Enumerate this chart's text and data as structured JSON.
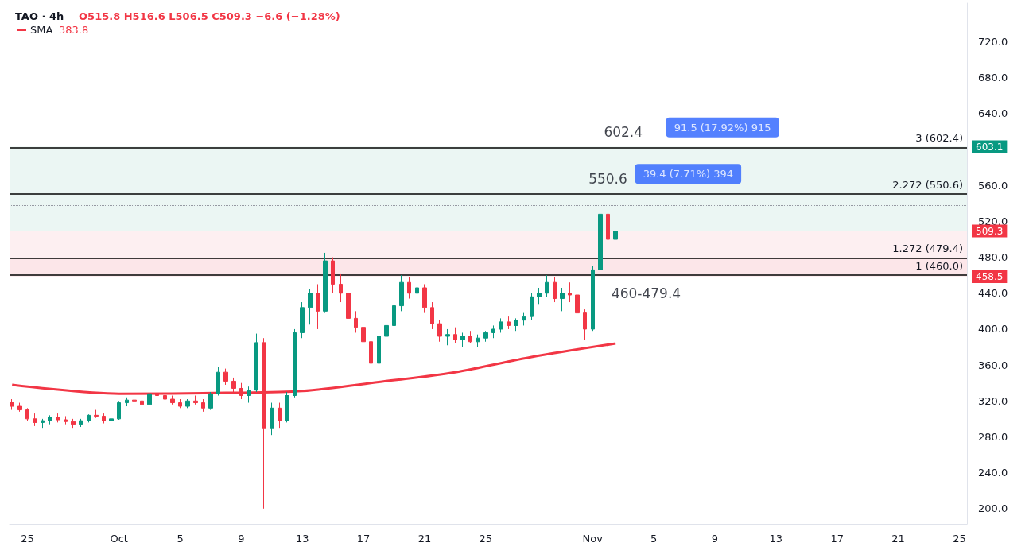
{
  "chart_data": {
    "type": "candlestick",
    "title": "TAO · 4h",
    "x": [
      "--09-24T00:00",
      "--09-24T12:00",
      "--09-25T00:00",
      "--09-25T12:00",
      "--09-26T00:00",
      "--09-26T12:00",
      "--09-27T00:00",
      "--09-27T12:00",
      "--09-28T00:00",
      "--09-28T12:00",
      "--09-29T00:00",
      "--09-29T12:00",
      "--09-30T00:00",
      "--09-30T12:00",
      "--10-01T00:00",
      "--10-01T12:00",
      "--10-02T00:00",
      "--10-02T12:00",
      "--10-03T00:00",
      "--10-03T12:00",
      "--10-04T00:00",
      "--10-04T12:00",
      "--10-05T00:00",
      "--10-05T12:00",
      "--10-06T00:00",
      "--10-06T12:00",
      "--10-07T00:00",
      "--10-07T12:00",
      "--10-08T00:00",
      "--10-08T12:00",
      "--10-09T00:00",
      "--10-09T12:00",
      "--10-10T00:00",
      "--10-10T12:00",
      "--10-11T00:00",
      "--10-11T12:00",
      "--10-12T00:00",
      "--10-12T12:00",
      "--10-13T00:00",
      "--10-13T12:00",
      "--10-14T00:00",
      "--10-14T12:00",
      "--10-15T00:00",
      "--10-15T12:00",
      "--10-16T00:00",
      "--10-16T12:00",
      "--10-17T00:00",
      "--10-17T12:00",
      "--10-18T00:00",
      "--10-18T12:00",
      "--10-19T00:00",
      "--10-19T12:00",
      "--10-20T00:00",
      "--10-20T12:00",
      "--10-21T00:00",
      "--10-21T12:00",
      "--10-22T00:00",
      "--10-22T12:00",
      "--10-23T00:00",
      "--10-23T12:00",
      "--10-24T00:00",
      "--10-24T12:00",
      "--10-25T00:00",
      "--10-25T12:00",
      "--10-26T00:00",
      "--10-26T12:00",
      "--10-27T00:00",
      "--10-27T12:00",
      "--10-28T00:00",
      "--10-28T12:00",
      "--10-29T00:00",
      "--10-29T12:00",
      "--10-30T00:00",
      "--10-30T12:00",
      "--10-31T00:00",
      "--10-31T12:00",
      "--11-01T00:00",
      "--11-01T12:00",
      "--11-02T00:00",
      "--11-02T12:00"
    ],
    "ohlc": [
      [
        318,
        322,
        310,
        314
      ],
      [
        314,
        318,
        308,
        310
      ],
      [
        310,
        312,
        298,
        300
      ],
      [
        300,
        306,
        292,
        296
      ],
      [
        296,
        300,
        290,
        298
      ],
      [
        298,
        304,
        294,
        302
      ],
      [
        302,
        306,
        296,
        299
      ],
      [
        299,
        303,
        294,
        297
      ],
      [
        297,
        300,
        290,
        294
      ],
      [
        294,
        300,
        291,
        298
      ],
      [
        298,
        305,
        296,
        304
      ],
      [
        304,
        310,
        301,
        303
      ],
      [
        303,
        306,
        295,
        298
      ],
      [
        298,
        302,
        294,
        300
      ],
      [
        300,
        320,
        299,
        318
      ],
      [
        318,
        324,
        314,
        321
      ],
      [
        321,
        326,
        316,
        320
      ],
      [
        320,
        324,
        312,
        316
      ],
      [
        316,
        330,
        314,
        328
      ],
      [
        328,
        332,
        322,
        326
      ],
      [
        326,
        330,
        318,
        322
      ],
      [
        322,
        326,
        316,
        318
      ],
      [
        318,
        322,
        312,
        314
      ],
      [
        314,
        322,
        312,
        320
      ],
      [
        320,
        326,
        316,
        318
      ],
      [
        318,
        322,
        308,
        312
      ],
      [
        312,
        330,
        310,
        328
      ],
      [
        328,
        358,
        326,
        352
      ],
      [
        352,
        356,
        338,
        342
      ],
      [
        342,
        346,
        330,
        334
      ],
      [
        334,
        340,
        322,
        326
      ],
      [
        326,
        336,
        318,
        332
      ],
      [
        332,
        395,
        330,
        385
      ],
      [
        385,
        390,
        200,
        290
      ],
      [
        290,
        318,
        282,
        312
      ],
      [
        312,
        318,
        290,
        298
      ],
      [
        298,
        330,
        296,
        326
      ],
      [
        326,
        400,
        324,
        396
      ],
      [
        396,
        430,
        390,
        424
      ],
      [
        424,
        445,
        405,
        440
      ],
      [
        440,
        450,
        400,
        420
      ],
      [
        420,
        485,
        418,
        476
      ],
      [
        476,
        480,
        440,
        450
      ],
      [
        450,
        462,
        430,
        440
      ],
      [
        440,
        444,
        408,
        412
      ],
      [
        412,
        420,
        396,
        402
      ],
      [
        402,
        412,
        380,
        386
      ],
      [
        386,
        390,
        350,
        362
      ],
      [
        362,
        400,
        358,
        392
      ],
      [
        392,
        410,
        386,
        404
      ],
      [
        404,
        430,
        400,
        426
      ],
      [
        426,
        460,
        420,
        452
      ],
      [
        452,
        458,
        434,
        440
      ],
      [
        440,
        452,
        432,
        446
      ],
      [
        446,
        450,
        418,
        424
      ],
      [
        424,
        430,
        400,
        406
      ],
      [
        406,
        410,
        386,
        392
      ],
      [
        392,
        400,
        382,
        394
      ],
      [
        394,
        402,
        384,
        388
      ],
      [
        388,
        396,
        380,
        392
      ],
      [
        392,
        398,
        384,
        386
      ],
      [
        386,
        394,
        380,
        390
      ],
      [
        390,
        398,
        386,
        396
      ],
      [
        396,
        404,
        390,
        400
      ],
      [
        400,
        412,
        396,
        408
      ],
      [
        408,
        414,
        400,
        404
      ],
      [
        404,
        412,
        398,
        410
      ],
      [
        410,
        418,
        404,
        414
      ],
      [
        414,
        440,
        410,
        436
      ],
      [
        436,
        446,
        428,
        440
      ],
      [
        440,
        460,
        436,
        452
      ],
      [
        452,
        458,
        430,
        434
      ],
      [
        434,
        446,
        420,
        440
      ],
      [
        440,
        452,
        430,
        438
      ],
      [
        438,
        446,
        410,
        418
      ],
      [
        418,
        422,
        388,
        400
      ],
      [
        400,
        470,
        398,
        466
      ],
      [
        466,
        540,
        462,
        528
      ],
      [
        528,
        536,
        490,
        500
      ],
      [
        500,
        516,
        488,
        509.3
      ]
    ],
    "series": [
      {
        "name": "SMA",
        "type": "line",
        "color": "#f23645",
        "x": [
          "--09-24T00:00",
          "--10-01T00:00",
          "--10-08T00:00",
          "--10-13T00:00",
          "--10-18T00:00",
          "--10-23T00:00",
          "--10-28T00:00",
          "--11-02T12:00"
        ],
        "values": [
          338,
          328,
          329,
          331,
          341,
          352,
          369,
          384
        ]
      }
    ],
    "xlim": [
      "--09-23T20:00",
      "--11-25T12:00"
    ],
    "xticks": [
      {
        "value": "--09-25",
        "label": "25"
      },
      {
        "value": "--10-01",
        "label": "Oct"
      },
      {
        "value": "--10-05",
        "label": "5"
      },
      {
        "value": "--10-09",
        "label": "9"
      },
      {
        "value": "--10-13",
        "label": "13"
      },
      {
        "value": "--10-17",
        "label": "17"
      },
      {
        "value": "--10-21",
        "label": "21"
      },
      {
        "value": "--10-25",
        "label": "25"
      },
      {
        "value": "--11-01",
        "label": "Nov"
      },
      {
        "value": "--11-05",
        "label": "5"
      },
      {
        "value": "--11-09",
        "label": "9"
      },
      {
        "value": "--11-13",
        "label": "13"
      },
      {
        "value": "--11-17",
        "label": "17"
      },
      {
        "value": "--11-21",
        "label": "21"
      },
      {
        "value": "--11-25",
        "label": "25"
      }
    ],
    "ylim": [
      183,
      763
    ],
    "yticks": [
      {
        "value": 200,
        "label": "200.0"
      },
      {
        "value": 240,
        "label": "240.0"
      },
      {
        "value": 280,
        "label": "280.0"
      },
      {
        "value": 320,
        "label": "320.0"
      },
      {
        "value": 360,
        "label": "360.0"
      },
      {
        "value": 400,
        "label": "400.0"
      },
      {
        "value": 440,
        "label": "440.0"
      },
      {
        "value": 480,
        "label": "480.0"
      },
      {
        "value": 520,
        "label": "520.0"
      },
      {
        "value": 560,
        "label": "560.0"
      },
      {
        "value": 600,
        "label": null
      },
      {
        "value": 640,
        "label": "640.0"
      },
      {
        "value": 680,
        "label": "680.0"
      },
      {
        "value": 720,
        "label": "720.0"
      }
    ],
    "ref_lines": [
      {
        "axis": "y",
        "value": 602.4,
        "label": "3 (602.4)"
      },
      {
        "axis": "y",
        "value": 550.6,
        "label": "2.272 (550.6)"
      },
      {
        "axis": "y",
        "value": 479.4,
        "label": "1.272 (479.4)"
      },
      {
        "axis": "y",
        "value": 460.0,
        "label": "1 (460.0)"
      },
      {
        "axis": "y",
        "value": 538,
        "label": null,
        "color": "#9598a1",
        "line_style": "dotted"
      },
      {
        "axis": "y",
        "value": 509.3,
        "label": "509.3",
        "color": "#f23645",
        "line_style": "dotted"
      }
    ],
    "bands": [
      {
        "axis": "y",
        "from": 460,
        "to": 479.4,
        "color": "#f8c5c9"
      },
      {
        "axis": "y",
        "from": 509.3,
        "to": 603.1,
        "color": "#e6f4f0",
        "label": "603.1"
      },
      {
        "axis": "y",
        "from": 509.3,
        "to": 458.5,
        "color": "#fdebee",
        "label": "458.5"
      }
    ],
    "annotations": [
      "O515.8 H516.6 L506.5 C509.3 −6.6 (−1.28%)",
      "383.8",
      {
        "text": "602.4",
        "x": "--11-03",
        "y": 602.4
      },
      {
        "text": "550.6",
        "x": "--11-02",
        "y": 550.6
      },
      {
        "text": "460-479.4",
        "x": "--11-04T12:00",
        "y": 460
      },
      {
        "text": "39.4 (7.71%) 394",
        "x": "--11-07T06:00",
        "y": 550.6
      },
      {
        "text": "91.5 (17.92%) 915",
        "x": "--11-09T12:00",
        "y": 602.4
      }
    ],
    "legend": "top left"
  }
}
